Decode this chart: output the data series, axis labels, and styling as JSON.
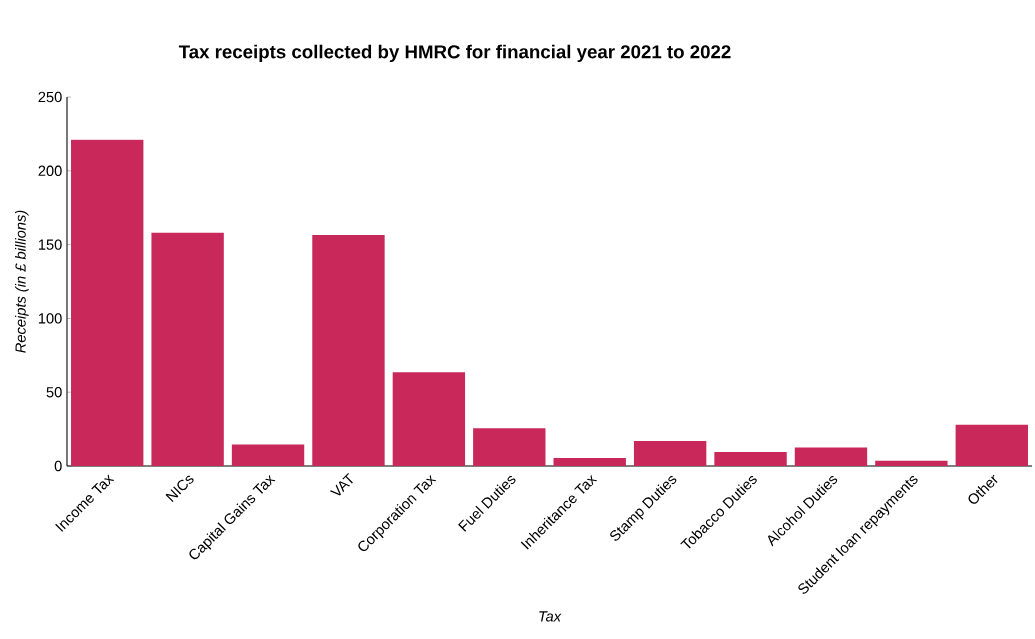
{
  "chart_data": {
    "type": "bar",
    "title": "Tax receipts collected by HMRC for financial year 2021 to 2022",
    "xlabel": "Tax",
    "ylabel": "Receipts (in £ billions)",
    "categories": [
      "Income Tax",
      "NICs",
      "Capital Gains Tax",
      "VAT",
      "Corporation Tax",
      "Fuel Duties",
      "Inheritance Tax",
      "Stamp Duties",
      "Tobacco Duties",
      "Alcohol Duties",
      "Student loan repayments",
      "Other"
    ],
    "values": [
      221,
      158,
      14.5,
      156.5,
      63.5,
      25.5,
      5.5,
      17,
      9.5,
      12.5,
      3.5,
      28
    ],
    "color": "#c8285a",
    "ylim": [
      0,
      250
    ],
    "yticks": [
      0,
      50,
      100,
      150,
      200,
      250
    ],
    "grid": false
  }
}
